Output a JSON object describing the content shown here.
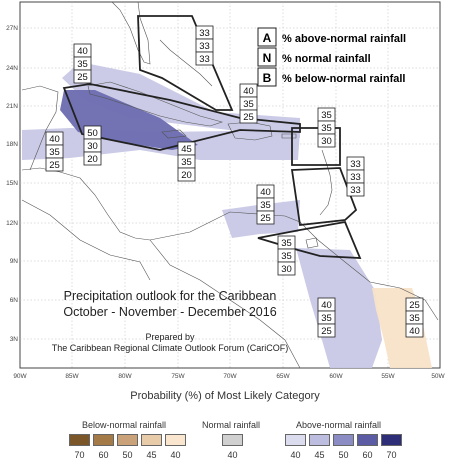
{
  "map": {
    "lat_labels": [
      "27N",
      "24N",
      "21N",
      "18N",
      "15N",
      "12N",
      "9N",
      "6N",
      "3N"
    ],
    "lon_labels": [
      "90W",
      "85W",
      "80W",
      "75W",
      "70W",
      "65W",
      "60W",
      "55W",
      "50W"
    ],
    "title_line1": "Precipitation outlook for the Caribbean",
    "title_line2": "October - November - December 2016",
    "prepared_line1": "Prepared by",
    "prepared_line2": "The Caribbean Regional Climate Outlook Forum (CariCOF)"
  },
  "key": {
    "items": [
      {
        "letter": "A",
        "text": "% above-normal rainfall"
      },
      {
        "letter": "N",
        "text": "% normal rainfall"
      },
      {
        "letter": "B",
        "text": "% below-normal rainfall"
      }
    ]
  },
  "probability_boxes": [
    {
      "a": "33",
      "n": "33",
      "b": "33"
    },
    {
      "a": "40",
      "n": "35",
      "b": "25"
    },
    {
      "a": "40",
      "n": "35",
      "b": "25"
    },
    {
      "a": "35",
      "n": "35",
      "b": "30"
    },
    {
      "a": "40",
      "n": "35",
      "b": "25"
    },
    {
      "a": "50",
      "n": "30",
      "b": "20"
    },
    {
      "a": "45",
      "n": "35",
      "b": "20"
    },
    {
      "a": "33",
      "n": "33",
      "b": "33"
    },
    {
      "a": "40",
      "n": "35",
      "b": "25"
    },
    {
      "a": "35",
      "n": "35",
      "b": "30"
    },
    {
      "a": "40",
      "n": "35",
      "b": "25"
    },
    {
      "a": "25",
      "n": "35",
      "b": "40"
    }
  ],
  "legend": {
    "title": "Probability (%) of Most Likely Category",
    "below_label": "Below-normal rainfall",
    "normal_label": "Normal rainfall",
    "above_label": "Above-normal rainfall",
    "below": [
      {
        "value": "70",
        "color": "#7a5628"
      },
      {
        "value": "60",
        "color": "#a47a48"
      },
      {
        "value": "50",
        "color": "#c9a27a"
      },
      {
        "value": "45",
        "color": "#e8cba8"
      },
      {
        "value": "40",
        "color": "#fae6cf"
      }
    ],
    "normal": [
      {
        "value": "40",
        "color": "#d0d0d0"
      }
    ],
    "above": [
      {
        "value": "40",
        "color": "#dcdcef"
      },
      {
        "value": "45",
        "color": "#bdbde0"
      },
      {
        "value": "50",
        "color": "#8c8cc4"
      },
      {
        "value": "60",
        "color": "#5c5ca4"
      },
      {
        "value": "70",
        "color": "#2e2e78"
      }
    ]
  }
}
